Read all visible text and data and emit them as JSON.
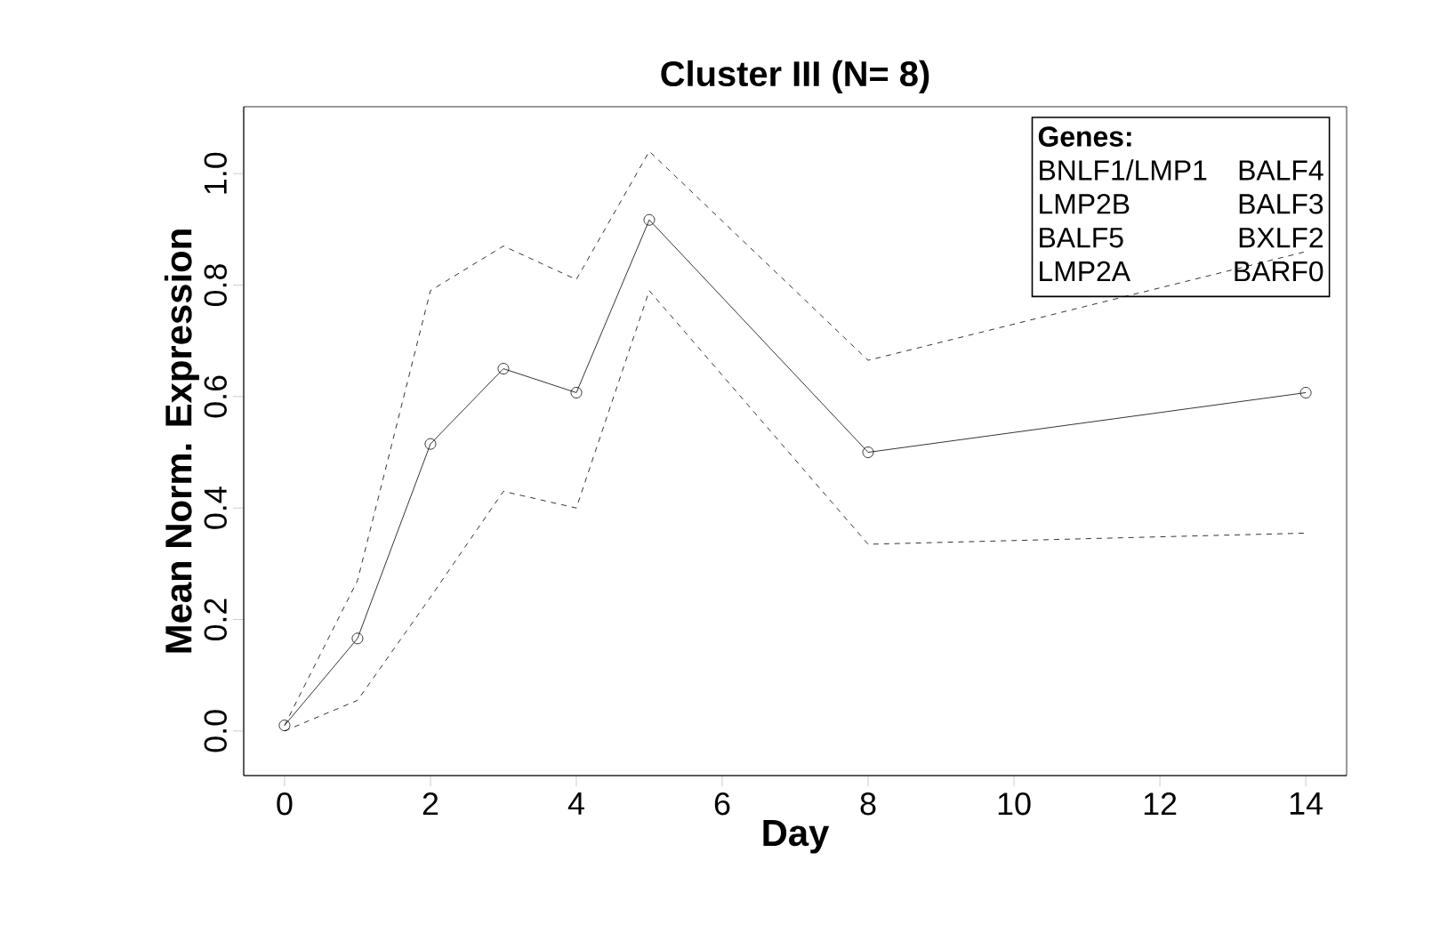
{
  "chart_data": {
    "type": "line",
    "title": "Cluster III (N= 8)",
    "xlabel": "Day",
    "ylabel": "Mean Norm. Expression",
    "legend_title": "Genes:",
    "annotations": [
      "BNLF1/LMP1",
      "BALF4",
      "LMP2B",
      "BALF3",
      "BALF5",
      "BXLF2",
      "LMP2A",
      "BARF0"
    ],
    "x": [
      0,
      1,
      2,
      3,
      4,
      5,
      8,
      14
    ],
    "series": [
      {
        "color": "#000000",
        "values": [
          0.01,
          0.166,
          0.515,
          0.65,
          0.607,
          0.917,
          0.5,
          0.607
        ],
        "marker": "circle",
        "line_style": "solid"
      },
      {
        "color": "#000000",
        "values": [
          0.0,
          0.055,
          0.24,
          0.43,
          0.4,
          0.79,
          0.335,
          0.355
        ],
        "marker": "none",
        "line_style": "dashed"
      },
      {
        "color": "#000000",
        "values": [
          0.01,
          0.27,
          0.79,
          0.87,
          0.81,
          1.04,
          0.665,
          0.86
        ],
        "marker": "none",
        "line_style": "dashed"
      }
    ],
    "xlim": [
      -0.56,
      14.56
    ],
    "ylim": [
      -0.08,
      1.12
    ],
    "xticks": [
      0,
      2,
      4,
      6,
      8,
      10,
      12,
      14
    ],
    "yticks": [
      {
        "value": 0,
        "label": "0.0"
      },
      {
        "value": 0.2,
        "label": "0.2"
      },
      {
        "value": 0.4,
        "label": "0.4"
      },
      {
        "value": 0.6,
        "label": "0.6"
      },
      {
        "value": 0.8,
        "label": "0.8"
      },
      {
        "value": 1.0,
        "label": "1.0"
      }
    ],
    "grid": false
  }
}
